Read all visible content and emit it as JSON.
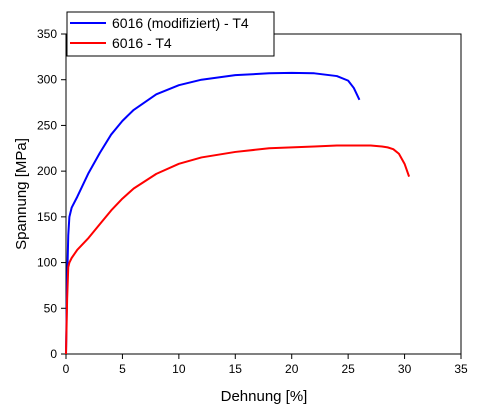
{
  "chart_data": {
    "type": "line",
    "xlabel": "Dehnung [%]",
    "ylabel": "Spannung [MPa]",
    "xlim": [
      0,
      35
    ],
    "ylim": [
      0,
      350
    ],
    "xticks": [
      0,
      5,
      10,
      15,
      20,
      25,
      30,
      35
    ],
    "yticks": [
      0,
      50,
      100,
      150,
      200,
      250,
      300,
      350
    ],
    "grid": false,
    "legend_position": "top-left",
    "series": [
      {
        "name": "6016 (modifiziert) - T4",
        "color": "#0000ff",
        "x": [
          0,
          0.1,
          0.2,
          0.3,
          0.5,
          1,
          2,
          3,
          4,
          5,
          6,
          8,
          10,
          12,
          15,
          18,
          20,
          22,
          24,
          25,
          25.5,
          26
        ],
        "y": [
          0,
          80,
          130,
          150,
          160,
          172,
          198,
          220,
          240,
          255,
          267,
          284,
          294,
          300,
          305,
          307,
          307.5,
          307,
          304,
          299,
          291,
          278
        ]
      },
      {
        "name": "6016 - T4",
        "color": "#ff0000",
        "x": [
          0,
          0.1,
          0.2,
          0.3,
          0.5,
          1,
          2,
          3,
          4,
          5,
          6,
          8,
          10,
          12,
          15,
          18,
          20,
          22,
          24,
          26,
          27,
          28,
          28.5,
          29,
          29.5,
          30,
          30.4
        ],
        "y": [
          0,
          60,
          95,
          100,
          105,
          114,
          127,
          142,
          157,
          170,
          181,
          197,
          208,
          215,
          221,
          225,
          226,
          227,
          228,
          228,
          228,
          227,
          226,
          224,
          219,
          208,
          194
        ]
      }
    ]
  }
}
